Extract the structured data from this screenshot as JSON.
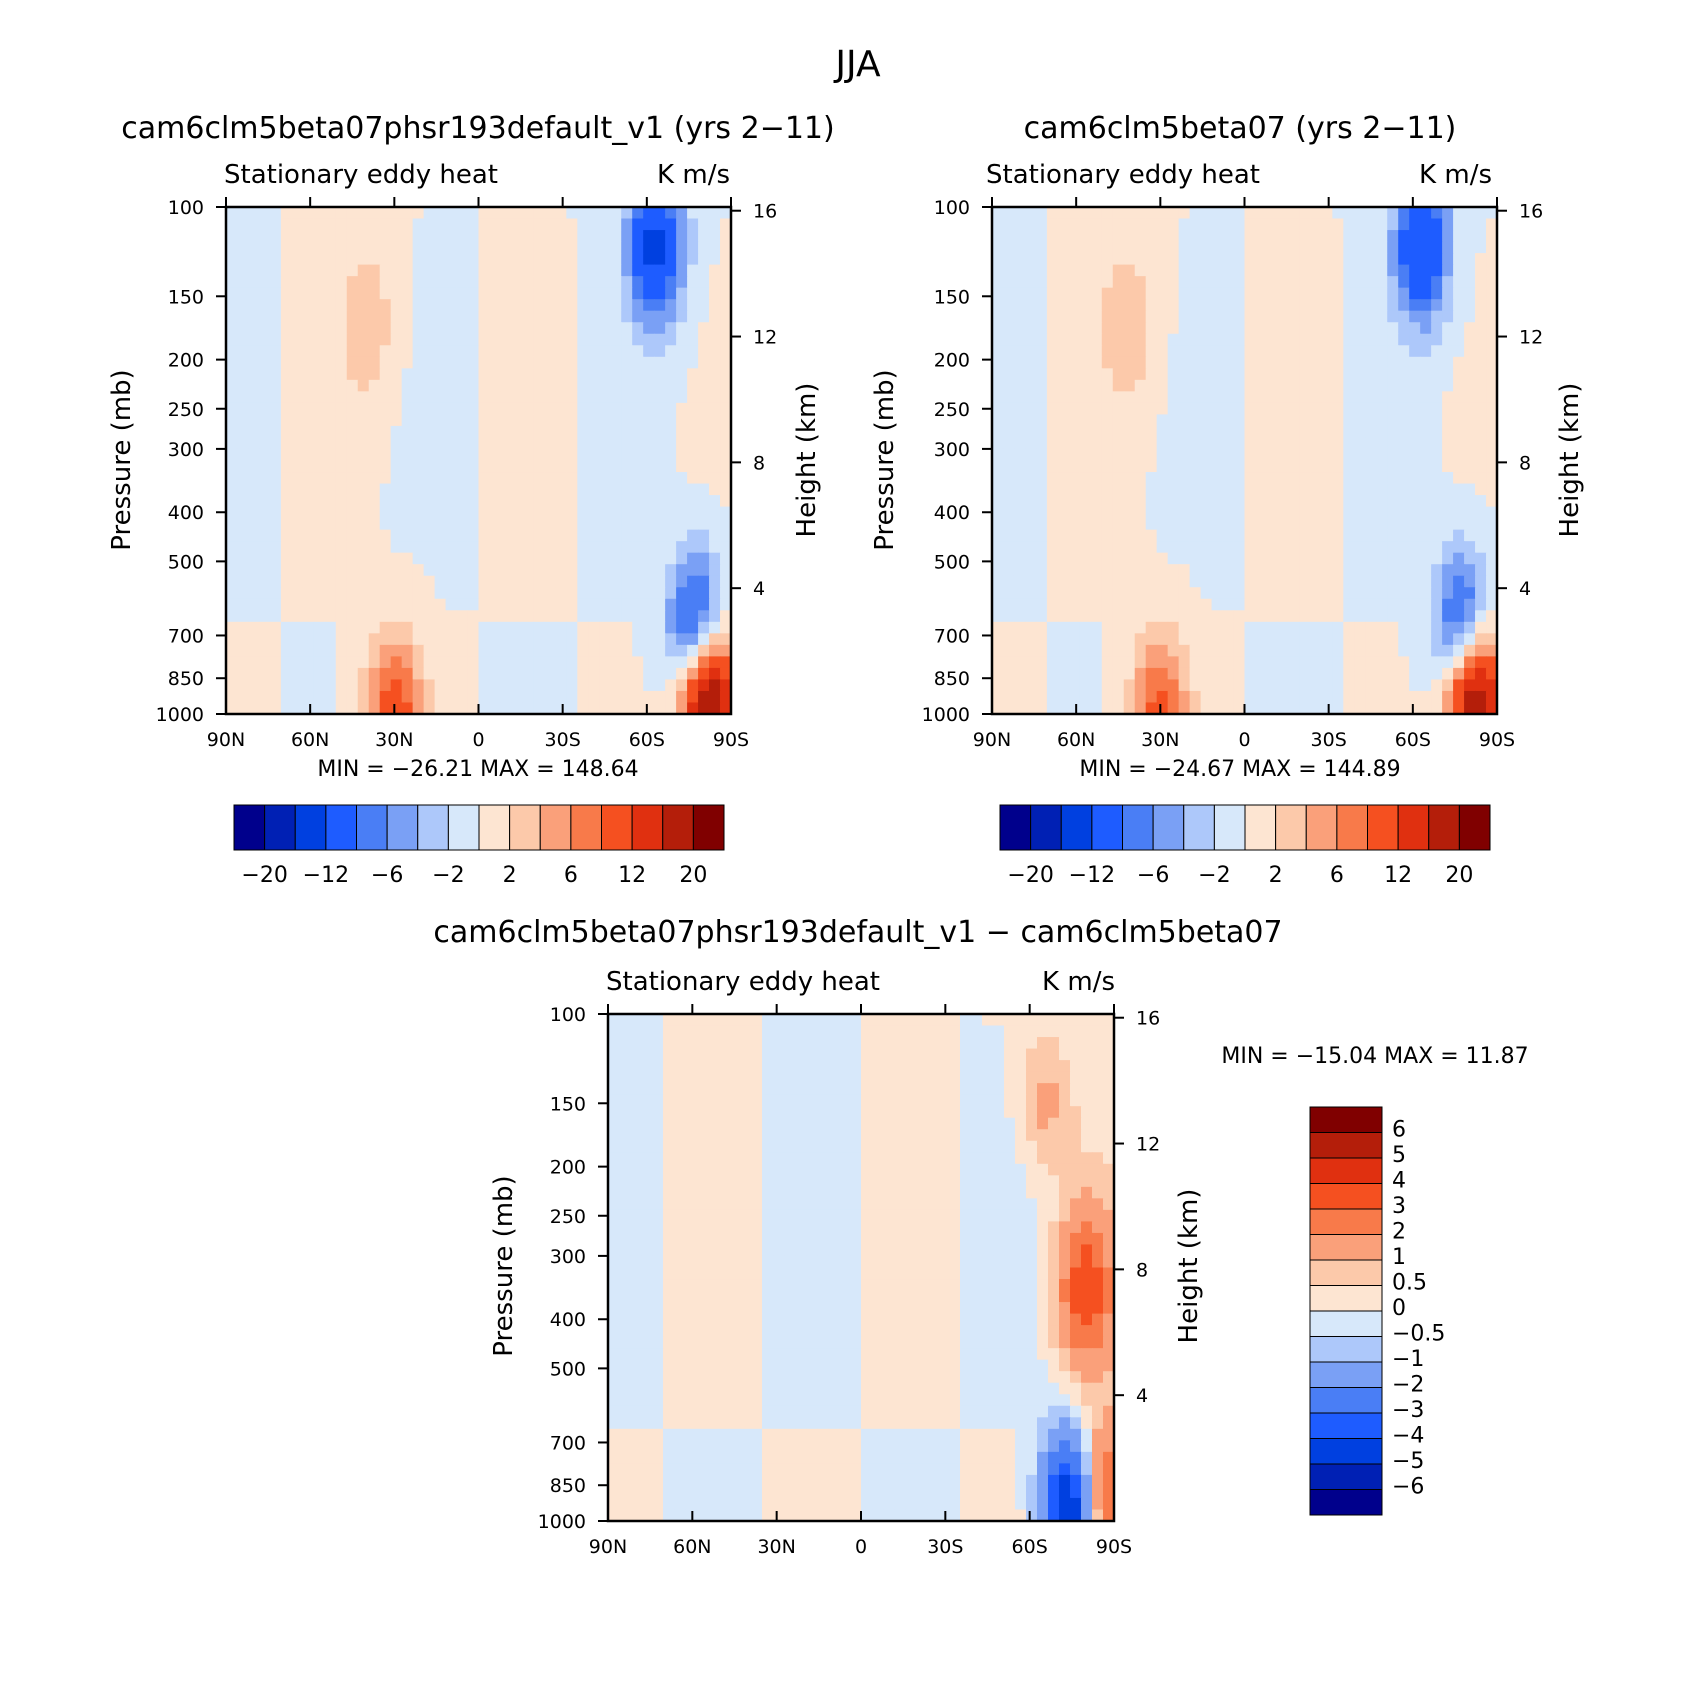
{
  "figure": {
    "title": "JJA"
  },
  "chart_data": [
    {
      "type": "heatmap",
      "title": "cam6clm5beta07phsr193default_v1 (yrs 2−11)",
      "left_string": "Stationary eddy heat",
      "right_string": "K m/s",
      "xlabel": "",
      "ylabel": "Pressure (mb)",
      "y2label": "Height (km)",
      "x_ticks": [
        "90N",
        "60N",
        "30N",
        "0",
        "30S",
        "60S",
        "90S"
      ],
      "y_ticks": [
        "100",
        "150",
        "200",
        "250",
        "300",
        "400",
        "500",
        "700",
        "850",
        "1000"
      ],
      "y2_ticks": [
        "16",
        "12",
        "8",
        "4"
      ],
      "xlim": [
        90,
        -90
      ],
      "ylim": [
        1000,
        100
      ],
      "y_scale": "log",
      "stats": "MIN = −26.21   MAX = 148.64",
      "colorbar": {
        "orientation": "horizontal",
        "labels": [
          "−20",
          "−12",
          "−6",
          "−2",
          "2",
          "6",
          "12",
          "20"
        ],
        "levels": [
          -20,
          -16,
          -12,
          -8,
          -6,
          -4,
          -2,
          0,
          2,
          4,
          6,
          8,
          12,
          16,
          20
        ]
      },
      "features": [
        {
          "lat": 40,
          "p": 170,
          "value": 3.5
        },
        {
          "lat": 30,
          "p": 1000,
          "value": 10
        },
        {
          "lat": -63,
          "p": 120,
          "value": -13
        },
        {
          "lat": -82,
          "p": 950,
          "value": 25
        },
        {
          "lat": -78,
          "p": 700,
          "value": -14
        }
      ]
    },
    {
      "type": "heatmap",
      "title": "cam6clm5beta07 (yrs 2−11)",
      "left_string": "Stationary eddy heat",
      "right_string": "K m/s",
      "xlabel": "",
      "ylabel": "Pressure (mb)",
      "y2label": "Height (km)",
      "x_ticks": [
        "90N",
        "60N",
        "30N",
        "0",
        "30S",
        "60S",
        "90S"
      ],
      "y_ticks": [
        "100",
        "150",
        "200",
        "250",
        "300",
        "400",
        "500",
        "700",
        "850",
        "1000"
      ],
      "y2_ticks": [
        "16",
        "12",
        "8",
        "4"
      ],
      "xlim": [
        90,
        -90
      ],
      "ylim": [
        1000,
        100
      ],
      "y_scale": "log",
      "stats": "MIN = −24.67   MAX = 144.89",
      "colorbar": {
        "orientation": "horizontal",
        "labels": [
          "−20",
          "−12",
          "−6",
          "−2",
          "2",
          "6",
          "12",
          "20"
        ],
        "levels": [
          -20,
          -16,
          -12,
          -8,
          -6,
          -4,
          -2,
          0,
          2,
          4,
          6,
          8,
          12,
          16,
          20
        ]
      },
      "features": [
        {
          "lat": 42,
          "p": 170,
          "value": 3.8
        },
        {
          "lat": 30,
          "p": 1000,
          "value": 9
        },
        {
          "lat": -63,
          "p": 120,
          "value": -12
        },
        {
          "lat": -82,
          "p": 950,
          "value": 24
        },
        {
          "lat": -78,
          "p": 700,
          "value": -13
        }
      ]
    },
    {
      "type": "heatmap",
      "title": "cam6clm5beta07phsr193default_v1 − cam6clm5beta07",
      "left_string": "Stationary eddy heat",
      "right_string": "K m/s",
      "xlabel": "",
      "ylabel": "Pressure (mb)",
      "y2label": "Height (km)",
      "x_ticks": [
        "90N",
        "60N",
        "30N",
        "0",
        "30S",
        "60S",
        "90S"
      ],
      "y_ticks": [
        "100",
        "150",
        "200",
        "250",
        "300",
        "400",
        "500",
        "700",
        "850",
        "1000"
      ],
      "y2_ticks": [
        "16",
        "12",
        "8",
        "4"
      ],
      "xlim": [
        90,
        -90
      ],
      "ylim": [
        1000,
        100
      ],
      "y_scale": "log",
      "stats": "MIN = −15.04   MAX =   11.87",
      "colorbar": {
        "orientation": "vertical",
        "labels": [
          "6",
          "5",
          "4",
          "3",
          "2",
          "1",
          "0.5",
          "0",
          "−0.5",
          "−1",
          "−2",
          "−3",
          "−4",
          "−5",
          "−6"
        ],
        "levels": [
          6,
          5,
          4,
          3,
          2,
          1,
          0.5,
          0,
          -0.5,
          -1,
          -2,
          -3,
          -4,
          -5,
          -6
        ]
      },
      "features": [
        {
          "lat": -65,
          "p": 150,
          "value": 1.2
        },
        {
          "lat": -80,
          "p": 350,
          "value": 3.5
        },
        {
          "lat": -75,
          "p": 950,
          "value": -6
        },
        {
          "lat": -85,
          "p": 900,
          "value": 4
        }
      ]
    }
  ],
  "colors": {
    "palette": [
      "#00008c",
      "#0020b4",
      "#0040e0",
      "#1e5cff",
      "#4a7ef5",
      "#7aa0f5",
      "#adc8fa",
      "#d7e8fa",
      "#fde5d2",
      "#fcc9aa",
      "#faa07a",
      "#f87a4a",
      "#f55020",
      "#e03010",
      "#b41e0a",
      "#800000"
    ]
  }
}
